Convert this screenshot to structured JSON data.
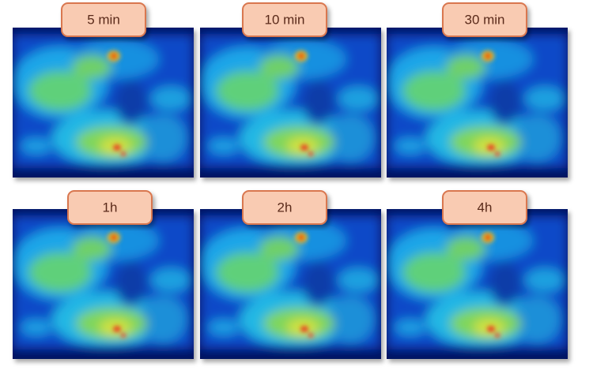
{
  "panels": [
    {
      "label": "5 min"
    },
    {
      "label": "10 min"
    },
    {
      "label": "30 min"
    },
    {
      "label": "1h"
    },
    {
      "label": "2h"
    },
    {
      "label": "4h"
    }
  ]
}
